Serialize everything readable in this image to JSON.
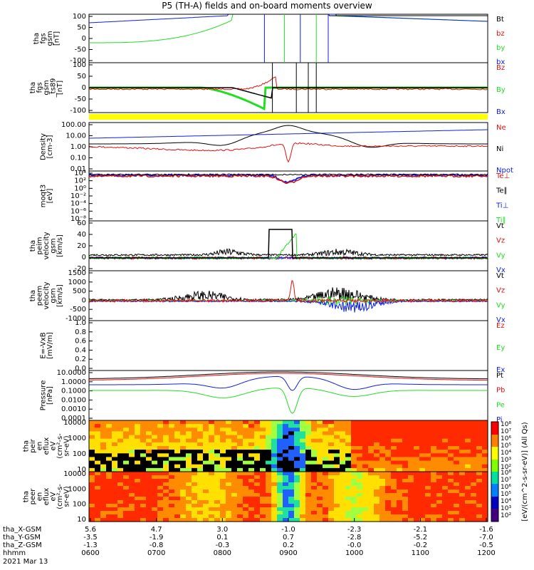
{
  "title": "P5 (TH-A) fields and on-board moments overview",
  "colors": {
    "black": "#000000",
    "red": "#e01010",
    "green": "#22dd22",
    "blue": "#1020e0",
    "yellow": "#ffff00"
  },
  "chart_data": [
    {
      "type": "line",
      "ylabel_lines": [
        "tha",
        "fgs",
        "gsm",
        "[nT]"
      ],
      "ylim": [
        -100,
        100
      ],
      "yticks": [
        "100",
        "50",
        "0",
        "-50",
        "-100"
      ],
      "legend": [
        {
          "name": "Bt",
          "color": "black"
        },
        {
          "name": "bz",
          "color": "red"
        },
        {
          "name": "by",
          "color": "green"
        },
        {
          "name": "bx",
          "color": "blue"
        }
      ]
    },
    {
      "type": "line",
      "ylabel_lines": [
        "tha",
        "fgs",
        "gsm",
        "_ts89",
        "[nT]"
      ],
      "ylim": [
        -120,
        100
      ],
      "yticks": [
        "100",
        "50",
        "0",
        "-50",
        "-100"
      ],
      "legend": [
        {
          "name": "Bz",
          "color": "red"
        },
        {
          "name": "By",
          "color": "green"
        },
        {
          "name": "Bx",
          "color": "blue"
        }
      ]
    },
    {
      "type": "line",
      "ylabel_lines": [
        "Density",
        "[cm-3]"
      ],
      "yscale": "log",
      "yticks": [
        "100.00",
        "10.00",
        "1.00",
        "0.10",
        "0.01"
      ],
      "legend": [
        {
          "name": "Ne",
          "color": "red"
        },
        {
          "name": "Ni",
          "color": "black"
        },
        {
          "name": "Npot",
          "color": "blue"
        }
      ]
    },
    {
      "type": "line",
      "ylabel_lines": [
        "moqt3",
        "[eV]"
      ],
      "yscale": "log",
      "yticks": [
        "10⁴",
        "10²",
        "10⁰",
        "10⁻²",
        "10⁻⁴",
        "10⁻⁶",
        "10⁻⁸"
      ],
      "legend": [
        {
          "name": "Te⊥",
          "color": "red"
        },
        {
          "name": "Te∥",
          "color": "black"
        },
        {
          "name": "Ti⊥",
          "color": "blue"
        },
        {
          "name": "Ti∥",
          "color": "green"
        }
      ]
    },
    {
      "type": "line",
      "ylabel_lines": [
        "tha",
        "peim",
        "velocity",
        "gsm",
        "[km/s]"
      ],
      "ylim": [
        -20,
        60
      ],
      "yticks": [
        "60",
        "40",
        "20",
        "0",
        "-20"
      ],
      "legend": [
        {
          "name": "Vt",
          "color": "black"
        },
        {
          "name": "Vz",
          "color": "red"
        },
        {
          "name": "Vy",
          "color": "green"
        },
        {
          "name": "Vx",
          "color": "blue"
        }
      ]
    },
    {
      "type": "line",
      "ylabel_lines": [
        "tha",
        "peem",
        "velocity",
        "gsm",
        "[km/s]"
      ],
      "ylim": [
        -1000,
        1500
      ],
      "yticks": [
        "1500",
        "1000",
        "500",
        "0",
        "-500",
        "-1000"
      ],
      "legend": [
        {
          "name": "Vt",
          "color": "black"
        },
        {
          "name": "Vz",
          "color": "red"
        },
        {
          "name": "Vy",
          "color": "green"
        },
        {
          "name": "Vx",
          "color": "blue"
        }
      ]
    },
    {
      "type": "line",
      "ylabel_lines": [
        "E=-VxB",
        "[mV/m]"
      ],
      "ylim": [
        0,
        1
      ],
      "yticks": [
        "1.0",
        "0.8",
        "0.6",
        "0.4",
        "0.2",
        "0.0"
      ],
      "legend": [
        {
          "name": "Ez",
          "color": "red"
        },
        {
          "name": "Ey",
          "color": "green"
        },
        {
          "name": "Ex",
          "color": "blue"
        }
      ]
    },
    {
      "type": "line",
      "ylabel_lines": [
        "Pressure",
        "[nPa]"
      ],
      "yscale": "log",
      "yticks": [
        "10.0000",
        "1.0000",
        "0.1000",
        "0.0100",
        "0.0010",
        "0.0001"
      ],
      "legend": [
        {
          "name": "Pt",
          "color": "black"
        },
        {
          "name": "Pb",
          "color": "red"
        },
        {
          "name": "Pe",
          "color": "green"
        },
        {
          "name": "Pi",
          "color": "blue"
        }
      ]
    },
    {
      "type": "heatmap",
      "ylabel_lines": [
        "tha",
        "peir",
        "en",
        "eflux",
        "eV",
        "(cm²-s-",
        "sr-eV)"
      ],
      "yscale": "log",
      "yticks": [
        "10000",
        "1000",
        "100",
        "10"
      ]
    },
    {
      "type": "heatmap",
      "ylabel_lines": [
        "tha",
        "peer",
        "en",
        "eflux",
        "eV",
        "(cm²-s-",
        "sr-eV)"
      ],
      "yscale": "log",
      "yticks": [
        "10000",
        "1000",
        "100",
        "10"
      ]
    }
  ],
  "colorbar": {
    "label": "[eV/(cm^2-s-sr-eV)] (All Qs)",
    "ticks_top": [
      "10⁸",
      "10⁷",
      "10⁶",
      "10⁵",
      "10⁴",
      "10³",
      "10²"
    ],
    "ticks_bottom": [
      "10⁸",
      "10⁷",
      "10⁶",
      "10⁵",
      "10⁴",
      "10³",
      "10²"
    ]
  },
  "xaxis": {
    "rows": [
      {
        "label": "tha_X-GSM",
        "values": [
          "5.6",
          "4.7",
          "3.0",
          "-1.0",
          "-2.3",
          "-2.1",
          "-1.6"
        ]
      },
      {
        "label": "tha_Y-GSM",
        "values": [
          "-3.5",
          "-1.9",
          "0.1",
          "0.7",
          "-2.8",
          "-5.2",
          "-7.0"
        ]
      },
      {
        "label": "tha_Z-GSM",
        "values": [
          "-1.3",
          "-0.8",
          "-0.3",
          "0.2",
          "-0.0",
          "-0.2",
          "-0.5"
        ]
      },
      {
        "label": "hhmm",
        "values": [
          "0600",
          "0700",
          "0800",
          "0900",
          "1000",
          "1100",
          "1200"
        ]
      }
    ],
    "date": "2021 Mar 13"
  }
}
